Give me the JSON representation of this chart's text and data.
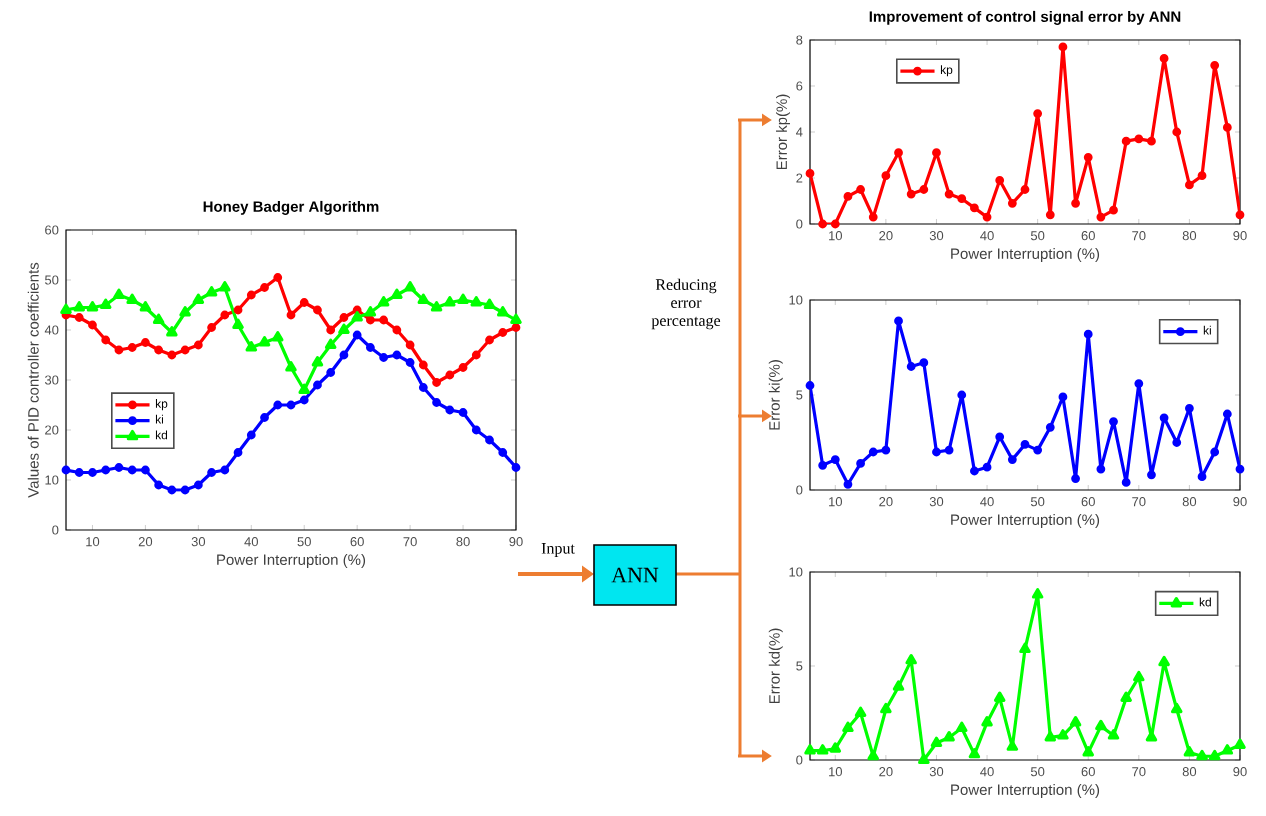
{
  "chart_data": [
    {
      "type": "line",
      "title": "Honey Badger Algorithm",
      "xlabel": "Power Interruption (%)",
      "ylabel": "Values of PID controller coefficients",
      "xlim": [
        5,
        90
      ],
      "ylim": [
        0,
        60
      ],
      "xticks": [
        10,
        20,
        30,
        40,
        50,
        60,
        70,
        80,
        90
      ],
      "yticks": [
        0,
        10,
        20,
        30,
        40,
        50,
        60
      ],
      "legend": "bottom left",
      "x": [
        5,
        7.5,
        10,
        12.5,
        15,
        17.5,
        20,
        22.5,
        25,
        27.5,
        30,
        32.5,
        35,
        37.5,
        40,
        42.5,
        45,
        47.5,
        50,
        52.5,
        55,
        57.5,
        60,
        62.5,
        65,
        67.5,
        70,
        72.5,
        75,
        77.5,
        80,
        82.5,
        85,
        87.5,
        90
      ],
      "series": [
        {
          "name": "kp",
          "color": "#ff0000",
          "marker": "circle",
          "values": [
            43,
            42.5,
            41,
            38,
            36,
            36.5,
            37.5,
            36,
            35,
            36,
            37,
            40.5,
            43,
            44,
            47,
            48.5,
            50.5,
            43,
            45.5,
            44,
            40,
            42.5,
            44,
            42,
            42,
            40,
            37,
            33,
            29.5,
            31,
            32.5,
            35,
            38,
            39.5,
            40.5
          ]
        },
        {
          "name": "ki",
          "color": "#0000ff",
          "marker": "circle",
          "values": [
            12,
            11.5,
            11.5,
            12,
            12.5,
            12,
            12,
            9,
            8,
            8,
            9,
            11.5,
            12,
            15.5,
            19,
            22.5,
            25,
            25,
            26,
            29,
            31.5,
            35,
            39,
            36.5,
            34.5,
            35,
            33.5,
            28.5,
            25.5,
            24,
            23.5,
            20,
            18,
            15.5,
            12.5
          ]
        },
        {
          "name": "kd",
          "color": "#00ff00",
          "marker": "triangle",
          "values": [
            44,
            44.5,
            44.5,
            45,
            47,
            46,
            44.5,
            42,
            39.5,
            43.5,
            46,
            47.5,
            48.5,
            41,
            36.5,
            37.5,
            38.5,
            32.5,
            28,
            33.5,
            37,
            40,
            42.5,
            43.5,
            45.5,
            47,
            48.5,
            46,
            44.5,
            45.5,
            46,
            45.5,
            45,
            43.5,
            42
          ]
        }
      ]
    },
    {
      "type": "line",
      "title": "Improvement of control signal error by ANN",
      "xlabel": "Power Interruption (%)",
      "ylabel": "Error kp(%)",
      "xlim": [
        5,
        90
      ],
      "ylim": [
        0,
        8
      ],
      "xticks": [
        10,
        20,
        30,
        40,
        50,
        60,
        70,
        80,
        90
      ],
      "yticks": [
        0,
        2,
        4,
        6,
        8
      ],
      "legend": "top left",
      "x": [
        5,
        7.5,
        10,
        12.5,
        15,
        17.5,
        20,
        22.5,
        25,
        27.5,
        30,
        32.5,
        35,
        37.5,
        40,
        42.5,
        45,
        47.5,
        50,
        52.5,
        55,
        57.5,
        60,
        62.5,
        65,
        67.5,
        70,
        72.5,
        75,
        77.5,
        80,
        82.5,
        85,
        87.5,
        90
      ],
      "series": [
        {
          "name": "kp",
          "color": "#ff0000",
          "marker": "circle",
          "values": [
            2.2,
            0,
            0,
            1.2,
            1.5,
            0.3,
            2.1,
            3.1,
            1.3,
            1.5,
            3.1,
            1.3,
            1.1,
            0.7,
            0.3,
            1.9,
            0.9,
            1.5,
            4.8,
            0.4,
            7.7,
            0.9,
            2.9,
            0.3,
            0.6,
            3.6,
            3.7,
            3.6,
            7.2,
            4,
            1.7,
            2.1,
            6.9,
            4.2,
            0.4
          ]
        }
      ]
    },
    {
      "type": "line",
      "xlabel": "Power Interruption (%)",
      "ylabel": "Error ki(%)",
      "xlim": [
        5,
        90
      ],
      "ylim": [
        0,
        10
      ],
      "xticks": [
        10,
        20,
        30,
        40,
        50,
        60,
        70,
        80,
        90
      ],
      "yticks": [
        0,
        5,
        10
      ],
      "legend": "top right",
      "x": [
        5,
        7.5,
        10,
        12.5,
        15,
        17.5,
        20,
        22.5,
        25,
        27.5,
        30,
        32.5,
        35,
        37.5,
        40,
        42.5,
        45,
        47.5,
        50,
        52.5,
        55,
        57.5,
        60,
        62.5,
        65,
        67.5,
        70,
        72.5,
        75,
        77.5,
        80,
        82.5,
        85,
        87.5,
        90
      ],
      "series": [
        {
          "name": "ki",
          "color": "#0000ff",
          "marker": "circle",
          "values": [
            5.5,
            1.3,
            1.6,
            0.3,
            1.4,
            2,
            2.1,
            8.9,
            6.5,
            6.7,
            2,
            2.1,
            5,
            1,
            1.2,
            2.8,
            1.6,
            2.4,
            2.1,
            3.3,
            4.9,
            0.6,
            8.2,
            1.1,
            3.6,
            0.4,
            5.6,
            0.8,
            3.8,
            2.5,
            4.3,
            0.7,
            2,
            4,
            1.1
          ]
        }
      ]
    },
    {
      "type": "line",
      "xlabel": "Power Interruption (%)",
      "ylabel": "Error kd(%)",
      "xlim": [
        5,
        90
      ],
      "ylim": [
        0,
        10
      ],
      "xticks": [
        10,
        20,
        30,
        40,
        50,
        60,
        70,
        80,
        90
      ],
      "yticks": [
        0,
        5,
        10
      ],
      "legend": "top right",
      "x": [
        5,
        7.5,
        10,
        12.5,
        15,
        17.5,
        20,
        22.5,
        25,
        27.5,
        30,
        32.5,
        35,
        37.5,
        40,
        42.5,
        45,
        47.5,
        50,
        52.5,
        55,
        57.5,
        60,
        62.5,
        65,
        67.5,
        70,
        72.5,
        75,
        77.5,
        80,
        82.5,
        85,
        87.5,
        90
      ],
      "series": [
        {
          "name": "kd",
          "color": "#00ff00",
          "marker": "triangle",
          "values": [
            0.5,
            0.5,
            0.6,
            1.7,
            2.5,
            0.2,
            2.7,
            3.9,
            5.3,
            0,
            0.9,
            1.2,
            1.7,
            0.3,
            2,
            3.3,
            0.7,
            5.9,
            8.8,
            1.2,
            1.3,
            2,
            0.4,
            1.8,
            1.3,
            3.3,
            4.4,
            1.2,
            5.2,
            2.7,
            0.4,
            0.2,
            0.2,
            0.5,
            0.8
          ]
        }
      ]
    },
    {
      "type": "other",
      "annotations": [
        "Input",
        "ANN",
        "Reducing error percentage"
      ]
    }
  ]
}
